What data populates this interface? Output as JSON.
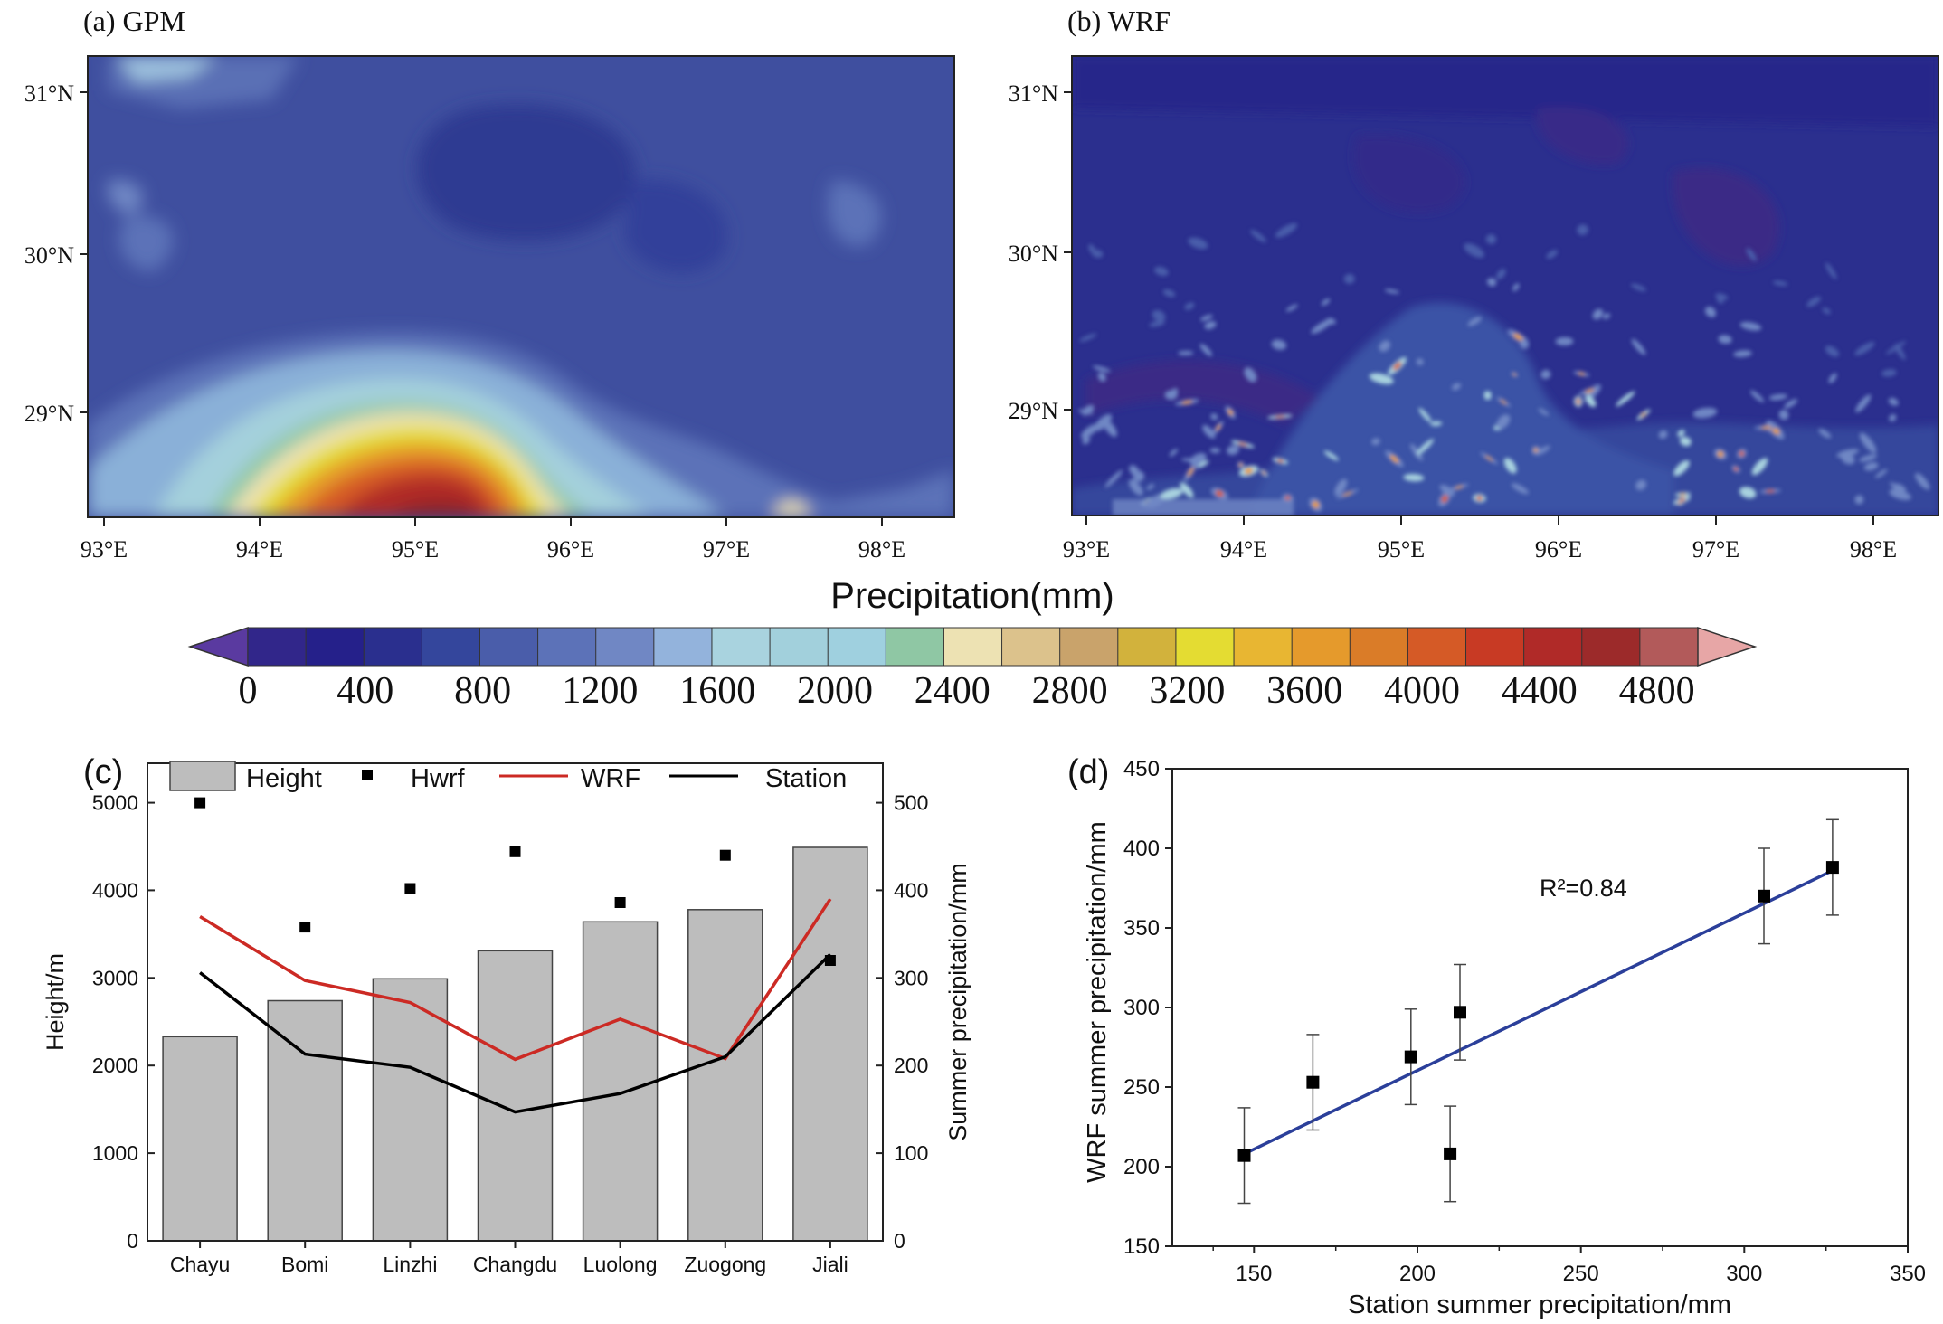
{
  "panel_a": {
    "label": "(a) GPM",
    "lat_ticks": [
      "31°N",
      "30°N",
      "29°N"
    ],
    "lon_ticks": [
      "93°E",
      "94°E",
      "95°E",
      "96°E",
      "97°E",
      "98°E"
    ]
  },
  "panel_b": {
    "label": "(b) WRF",
    "lat_ticks": [
      "31°N",
      "30°N",
      "29°N"
    ],
    "lon_ticks": [
      "93°E",
      "94°E",
      "95°E",
      "96°E",
      "97°E",
      "98°E"
    ]
  },
  "colorbar": {
    "title": "Precipitation(mm)",
    "tick_labels": [
      "0",
      "400",
      "800",
      "1200",
      "1600",
      "2000",
      "2400",
      "2800",
      "3200",
      "3600",
      "4000",
      "4400",
      "4800"
    ],
    "colors": [
      "#5a3aa0",
      "#31268a",
      "#25208a",
      "#2a2f8e",
      "#34469c",
      "#4a5daa",
      "#5c72b8",
      "#7087c4",
      "#93b3dc",
      "#a9d3df",
      "#a2d0dc",
      "#9fd0df",
      "#8fc7a4",
      "#ede2b3",
      "#dcc28c",
      "#c9a36b",
      "#d2b23c",
      "#e4dc32",
      "#e8b632",
      "#e59a2c",
      "#da7c28",
      "#d55a26",
      "#c83a24",
      "#b02a28",
      "#9c2a2a",
      "#b25a5a",
      "#e7a6a6"
    ]
  },
  "chart_data": [
    {
      "panel": "(c)",
      "type": "bar",
      "categories": [
        "Chayu",
        "Bomi",
        "Linzhi",
        "Changdu",
        "Luolong",
        "Zuogong",
        "Jiali"
      ],
      "legend": [
        "Height",
        "Hwrf",
        "WRF",
        "Station"
      ],
      "ylabel_left": "Height/m",
      "ylabel_right": "Summer precipitation/mm",
      "ylim_left": [
        0,
        5000
      ],
      "yticks_left": [
        "0",
        "1000",
        "2000",
        "3000",
        "4000",
        "5000"
      ],
      "ylim_right": [
        0,
        500
      ],
      "yticks_right": [
        "0",
        "100",
        "200",
        "300",
        "400",
        "500"
      ],
      "series": [
        {
          "name": "Height",
          "kind": "bar",
          "axis": "left",
          "color": "#bdbdbd",
          "values": [
            2330,
            2740,
            2990,
            3310,
            3640,
            3780,
            4490
          ]
        },
        {
          "name": "Hwrf",
          "kind": "marker",
          "axis": "left",
          "color": "#000000",
          "values": [
            5000,
            3580,
            4020,
            4440,
            3860,
            4400,
            3200
          ]
        },
        {
          "name": "WRF",
          "kind": "line",
          "axis": "right",
          "color": "#cc2a24",
          "values": [
            370,
            297,
            272,
            207,
            253,
            208,
            390
          ]
        },
        {
          "name": "Station",
          "kind": "line",
          "axis": "right",
          "color": "#000000",
          "values": [
            306,
            213,
            198,
            147,
            168,
            210,
            327
          ]
        }
      ]
    },
    {
      "panel": "(d)",
      "type": "scatter",
      "xlabel": "Station summer precipitation/mm",
      "ylabel": "WRF summer precipitation/mm",
      "xlim": [
        125,
        350
      ],
      "xticks": [
        "150",
        "200",
        "250",
        "300",
        "350"
      ],
      "ylim": [
        150,
        450
      ],
      "yticks": [
        "150",
        "200",
        "250",
        "300",
        "350",
        "400",
        "450"
      ],
      "annotation": "R²=0.84",
      "points": [
        {
          "x": 147,
          "y": 207,
          "err": 30
        },
        {
          "x": 168,
          "y": 253,
          "err": 30
        },
        {
          "x": 198,
          "y": 269,
          "err": 30
        },
        {
          "x": 210,
          "y": 208,
          "err": 30
        },
        {
          "x": 213,
          "y": 297,
          "err": 30
        },
        {
          "x": 306,
          "y": 370,
          "err": 30
        },
        {
          "x": 327,
          "y": 388,
          "err": 30
        }
      ],
      "fit": {
        "x": [
          147,
          327
        ],
        "y": [
          208,
          386
        ],
        "color": "#2b3f9a"
      }
    }
  ]
}
